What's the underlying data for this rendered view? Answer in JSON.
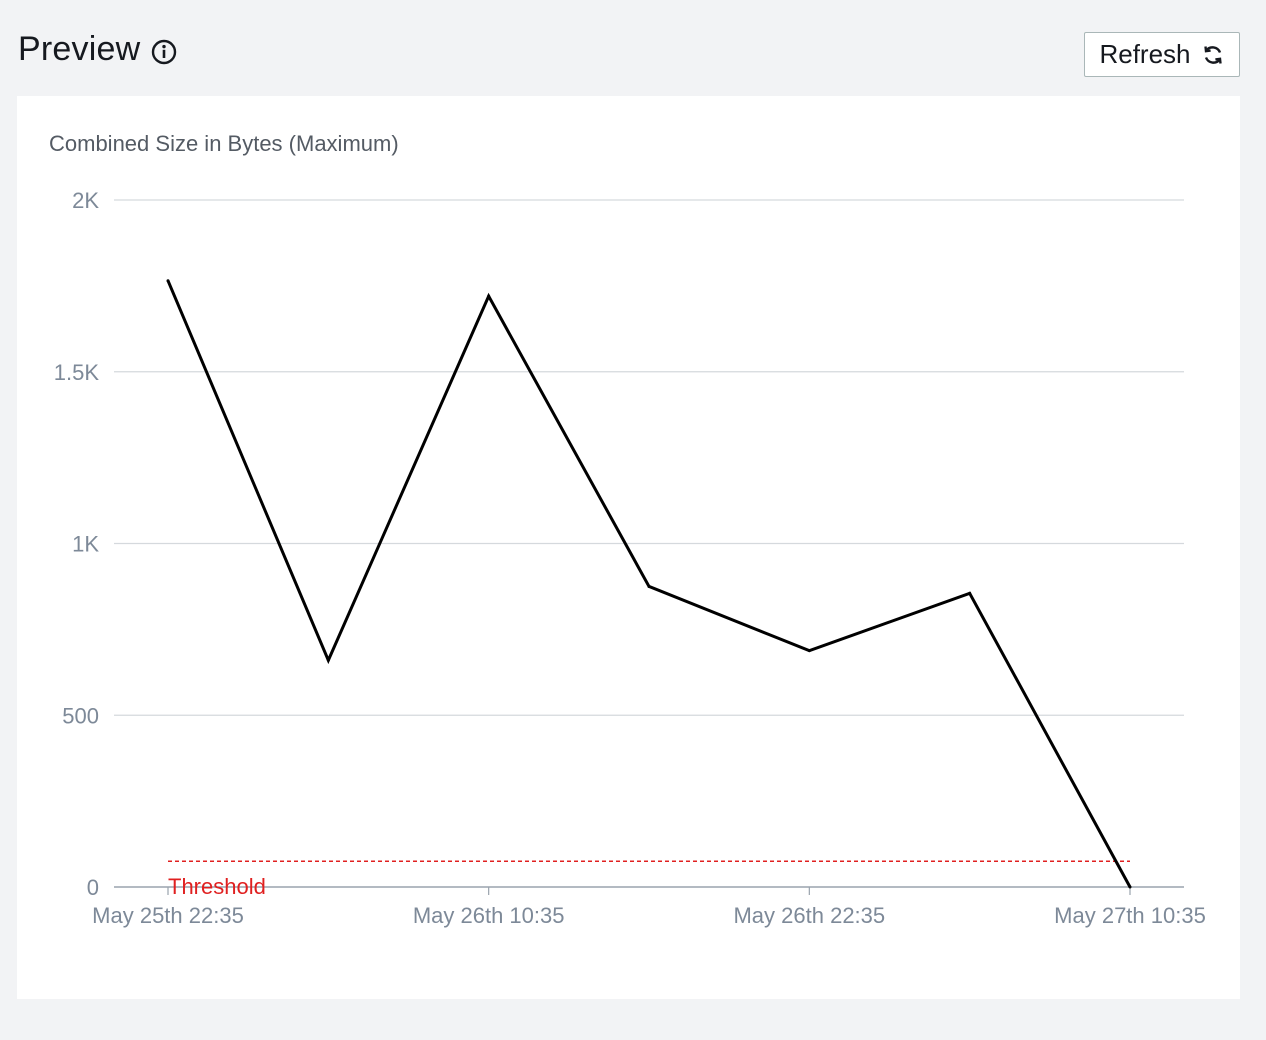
{
  "header": {
    "title": "Preview",
    "refresh_label": "Refresh",
    "info_icon": "info-icon",
    "refresh_icon": "refresh-icon"
  },
  "chart_data": {
    "type": "line",
    "title": "Combined Size in Bytes (Maximum)",
    "xlabel": "",
    "ylabel": "",
    "x": [
      0,
      6,
      12,
      18,
      24,
      30,
      36
    ],
    "series": [
      {
        "values": [
          1765,
          660,
          1720,
          875,
          688,
          855,
          0
        ],
        "color": "#000000"
      }
    ],
    "x_ticks": [
      {
        "x": 0,
        "label": "May 25th 22:35"
      },
      {
        "x": 12,
        "label": "May 26th 10:35"
      },
      {
        "x": 24,
        "label": "May 26th 22:35"
      },
      {
        "x": 36,
        "label": "May 27th 10:35"
      }
    ],
    "y_ticks": [
      {
        "y": 0,
        "label": "0"
      },
      {
        "y": 500,
        "label": "500"
      },
      {
        "y": 1000,
        "label": "1K"
      },
      {
        "y": 1500,
        "label": "1.5K"
      },
      {
        "y": 2000,
        "label": "2K"
      }
    ],
    "xlim": [
      0,
      36
    ],
    "ylim": [
      0,
      2000
    ],
    "grid": true,
    "threshold": {
      "value": 75,
      "label": "Threshold",
      "color": "#e02020"
    }
  }
}
